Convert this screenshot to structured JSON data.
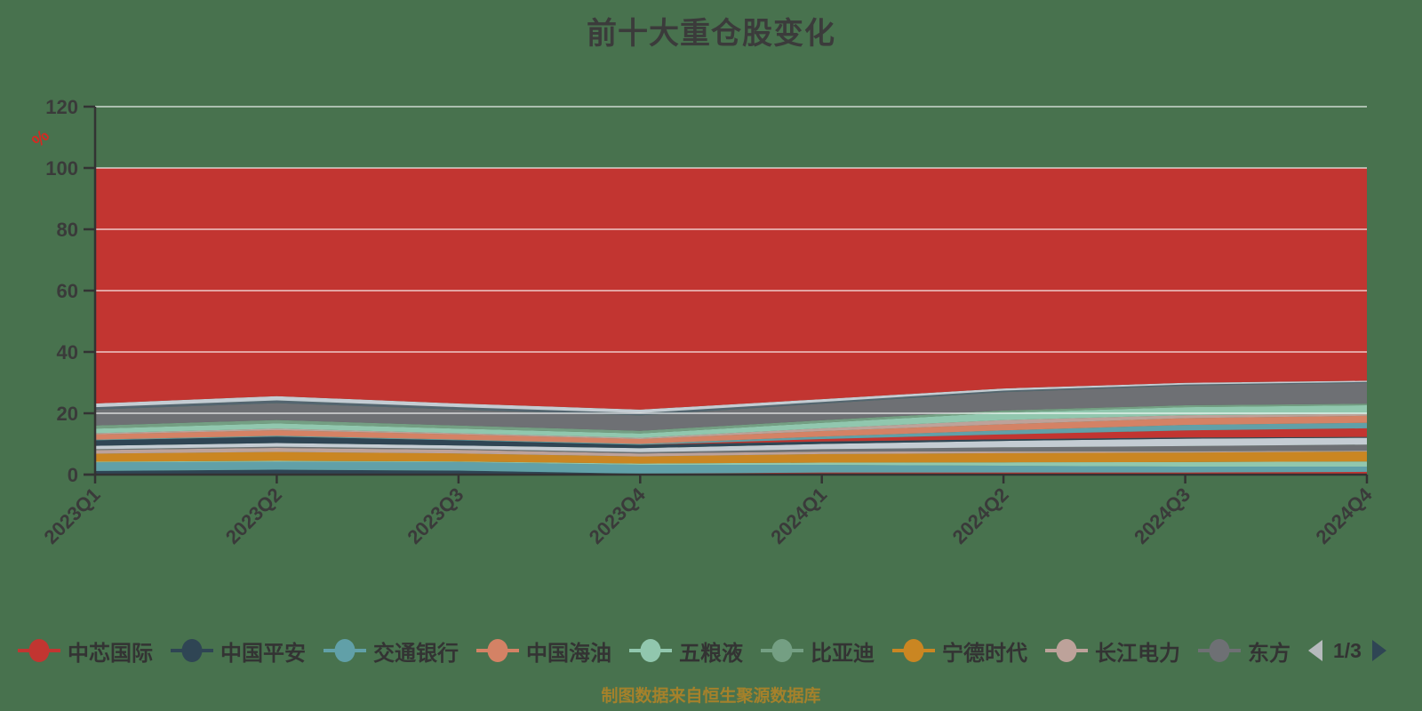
{
  "header": {
    "title": "前十大重仓股变化"
  },
  "y_axis": {
    "unit_label": "%",
    "unit_color": "#d42a22"
  },
  "legend": {
    "page_label": "1/3",
    "items": [
      {
        "label": "中芯国际",
        "color": "#c23531"
      },
      {
        "label": "中国平安",
        "color": "#2f4554"
      },
      {
        "label": "交通银行",
        "color": "#61a0a8"
      },
      {
        "label": "中国海油",
        "color": "#d48265"
      },
      {
        "label": "五粮液",
        "color": "#91c7ae"
      },
      {
        "label": "比亚迪",
        "color": "#749f83"
      },
      {
        "label": "宁德时代",
        "color": "#ca8622"
      },
      {
        "label": "长江电力",
        "color": "#bda29a"
      },
      {
        "label": "东方",
        "color": "#6e7074",
        "truncated": true
      }
    ]
  },
  "footer": {
    "source_note": "制图数据来自恒生聚源数据库"
  },
  "chart_data": {
    "type": "area",
    "stacked": true,
    "title": "前十大重仓股变化",
    "unit": "%",
    "grid": true,
    "legend_position": "bottom",
    "categories": [
      "2023Q1",
      "2023Q2",
      "2023Q3",
      "2023Q4",
      "2024Q1",
      "2024Q2",
      "2024Q3",
      "2024Q4"
    ],
    "ylim": [
      0,
      120
    ],
    "yticks": [
      0,
      20,
      40,
      60,
      80,
      100,
      120
    ],
    "stack_total": 100,
    "series": [
      {
        "name": "中国平安",
        "color": "#2f4554",
        "values": [
          1.2,
          1.6,
          1.3,
          0.3,
          0.4,
          0.3,
          0.2,
          0.2
        ]
      },
      {
        "name": "",
        "color": "#c23531",
        "values": [
          0.0,
          0.0,
          0.0,
          0.0,
          0.3,
          0.4,
          0.5,
          0.7
        ]
      },
      {
        "name": "交通银行",
        "color": "#61a0a8",
        "values": [
          2.8,
          2.6,
          2.8,
          2.9,
          2.5,
          2.2,
          1.9,
          1.7
        ]
      },
      {
        "name": "",
        "color": "#91c7ae",
        "values": [
          0.2,
          0.3,
          0.2,
          0.4,
          0.7,
          1.1,
          1.5,
          1.7
        ]
      },
      {
        "name": "宁德时代",
        "color": "#ca8622",
        "values": [
          2.6,
          2.9,
          2.6,
          2.3,
          2.8,
          3.0,
          3.1,
          3.2
        ]
      },
      {
        "name": "长江电力",
        "color": "#bda29a",
        "values": [
          1.2,
          1.3,
          1.2,
          1.0,
          0.8,
          0.6,
          0.4,
          0.3
        ]
      },
      {
        "name": "",
        "color": "#6e7074",
        "values": [
          0.3,
          0.4,
          0.3,
          0.4,
          0.8,
          1.3,
          1.7,
          2.0
        ]
      },
      {
        "name": "",
        "color": "#c4ccd3",
        "values": [
          1.1,
          1.2,
          1.1,
          1.3,
          1.7,
          2.1,
          2.4,
          2.2
        ]
      },
      {
        "name": "",
        "color": "#2f4554",
        "values": [
          1.8,
          2.1,
          1.7,
          1.1,
          0.8,
          0.5,
          0.4,
          0.3
        ]
      },
      {
        "name": "中芯国际",
        "color": "#c23531",
        "values": [
          0.0,
          0.0,
          0.0,
          0.0,
          0.8,
          1.6,
          2.3,
          2.8
        ]
      },
      {
        "name": "",
        "color": "#61a0a8",
        "values": [
          0.2,
          0.3,
          0.2,
          0.3,
          0.8,
          1.3,
          1.8,
          1.8
        ]
      },
      {
        "name": "中国海油",
        "color": "#d48265",
        "values": [
          1.7,
          1.8,
          1.7,
          1.6,
          1.8,
          2.0,
          2.2,
          2.3
        ]
      },
      {
        "name": "",
        "color": "#bda29a",
        "values": [
          0.4,
          0.5,
          0.4,
          0.4,
          0.9,
          1.4,
          1.0,
          0.6
        ]
      },
      {
        "name": "五粮液",
        "color": "#91c7ae",
        "values": [
          1.5,
          1.7,
          1.5,
          1.4,
          1.8,
          2.4,
          2.6,
          2.8
        ]
      },
      {
        "name": "比亚迪",
        "color": "#749f83",
        "values": [
          1.0,
          1.1,
          1.0,
          0.9,
          0.8,
          0.7,
          0.6,
          0.5
        ]
      },
      {
        "name": "东方",
        "color": "#6e7074",
        "values": [
          5.2,
          5.5,
          5.2,
          5.0,
          5.4,
          6.0,
          6.4,
          6.8
        ]
      },
      {
        "name": "",
        "color": "#546570",
        "values": [
          0.8,
          0.9,
          0.8,
          0.8,
          0.6,
          0.5,
          0.4,
          0.3
        ]
      },
      {
        "name": "",
        "color": "#c4ccd3",
        "values": [
          1.2,
          1.4,
          1.2,
          1.1,
          0.9,
          0.7,
          0.5,
          0.4
        ]
      },
      {
        "name": "",
        "color": "#c23531",
        "values": [
          76.8,
          74.4,
          76.8,
          78.8,
          75.4,
          71.9,
          70.1,
          69.4
        ]
      }
    ]
  }
}
